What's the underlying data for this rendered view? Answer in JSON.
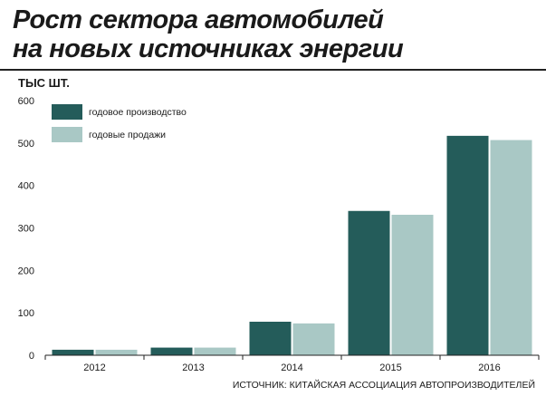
{
  "header": {
    "title_line1": "Рост сектора автомобилей",
    "title_line2": "на новых источниках энергии",
    "unit": "ТЫС ШТ."
  },
  "footer": {
    "source": "ИСТОЧНИК: КИТАЙСКАЯ АССОЦИАЦИЯ АВТОПРОИЗВОДИТЕЛЕЙ"
  },
  "chart_data": {
    "type": "bar",
    "categories": [
      "2012",
      "2013",
      "2014",
      "2015",
      "2016"
    ],
    "series": [
      {
        "name": "годовое производство",
        "color": "#245c5a",
        "values": [
          13,
          18,
          79,
          340,
          517
        ]
      },
      {
        "name": "годовые продажи",
        "color": "#a9c8c5",
        "values": [
          13,
          18,
          75,
          331,
          507
        ]
      }
    ],
    "ylim": [
      0,
      600
    ],
    "yticks": [
      0,
      100,
      200,
      300,
      400,
      500,
      600
    ],
    "legend_position": "top-left",
    "grid": false
  }
}
